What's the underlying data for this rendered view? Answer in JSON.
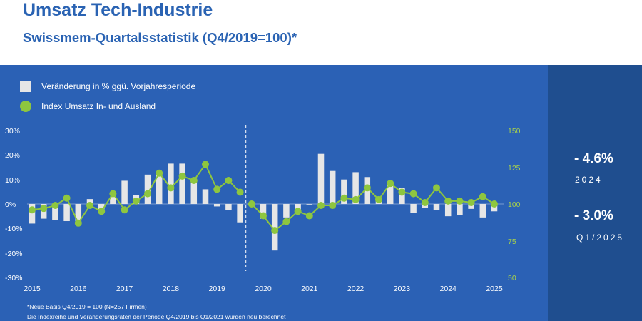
{
  "header": {
    "title": "Umsatz Tech-Industrie",
    "subtitle": "Swissmem-Quartalsstatistik (Q4/2019=100)*"
  },
  "legend": {
    "bars_label": "Veränderung in % ggü. Vorjahresperiode",
    "line_label": "Index Umsatz In- und Ausland"
  },
  "side": {
    "stat1_value": "- 4.6%",
    "stat1_label": "2024",
    "stat2_value": "- 3.0%",
    "stat2_label": "Q1/2025"
  },
  "footnotes": {
    "line1": "*Neue Basis Q4/2019 = 100 (N=257 Firmen)",
    "line2": "Die Indexreihe und Veränderungsraten der Periode Q4/2019 bis Q1/2021 wurden neu berechnet"
  },
  "colors": {
    "panel": "#2b61b5",
    "side_panel": "#1f4e8f",
    "bars": "#e6e6e6",
    "line": "#8ec63f",
    "title": "#2a63b3",
    "left_axis_text": "#ffffff",
    "right_axis_text": "#a8d24a"
  },
  "chart_data": {
    "type": "bar+line",
    "x_ticks": [
      "2015",
      "2016",
      "2017",
      "2018",
      "2019",
      "2020",
      "2021",
      "2022",
      "2023",
      "2024",
      "2025"
    ],
    "left_axis": {
      "ticks": [
        "30%",
        "20%",
        "10%",
        "0%",
        "-10%",
        "-20%",
        "-30%"
      ],
      "range": [
        -30,
        30
      ]
    },
    "right_axis": {
      "ticks": [
        "150",
        "125",
        "100",
        "75",
        "50"
      ],
      "range": [
        50,
        150
      ]
    },
    "structural_break": "between Q3/2019 and Q4/2019 (dashed vertical line)",
    "quarters": [
      "Q1/2015",
      "Q2/2015",
      "Q3/2015",
      "Q4/2015",
      "Q1/2016",
      "Q2/2016",
      "Q3/2016",
      "Q4/2016",
      "Q1/2017",
      "Q2/2017",
      "Q3/2017",
      "Q4/2017",
      "Q1/2018",
      "Q2/2018",
      "Q3/2018",
      "Q4/2018",
      "Q1/2019",
      "Q2/2019",
      "Q3/2019",
      "Q4/2019",
      "Q1/2020",
      "Q2/2020",
      "Q3/2020",
      "Q4/2020",
      "Q1/2021",
      "Q2/2021",
      "Q3/2021",
      "Q4/2021",
      "Q1/2022",
      "Q2/2022",
      "Q3/2022",
      "Q4/2022",
      "Q1/2023",
      "Q2/2023",
      "Q3/2023",
      "Q4/2023",
      "Q1/2024",
      "Q2/2024",
      "Q3/2024",
      "Q4/2024",
      "Q1/2025"
    ],
    "series": [
      {
        "name": "Veränderung in % ggü. Vorjahresperiode",
        "type": "bar",
        "axis": "left",
        "values": [
          -8,
          -6,
          -6.5,
          -7,
          -8.5,
          2,
          -2.5,
          3,
          9.5,
          3.5,
          12,
          13,
          16.5,
          16.5,
          9,
          6,
          -1,
          -2.5,
          -7.5,
          0,
          -6,
          -19,
          -5.5,
          -3,
          0,
          20.5,
          13.5,
          10,
          13,
          11,
          2,
          9,
          6.5,
          -3.5,
          -1.5,
          -2.5,
          -5,
          -4.5,
          -2,
          -5.5,
          -3
        ]
      },
      {
        "name": "Index Umsatz In- und Ausland",
        "type": "line",
        "axis": "right",
        "values": [
          96,
          97,
          99,
          104,
          87,
          99,
          95,
          107,
          96,
          102,
          107,
          121,
          111,
          119,
          116,
          127,
          110,
          116,
          108,
          100,
          92,
          82,
          88,
          95,
          92,
          99,
          99,
          104,
          103,
          111,
          103,
          114,
          108,
          107,
          101,
          111,
          102,
          102,
          101,
          105,
          100
        ]
      }
    ]
  }
}
